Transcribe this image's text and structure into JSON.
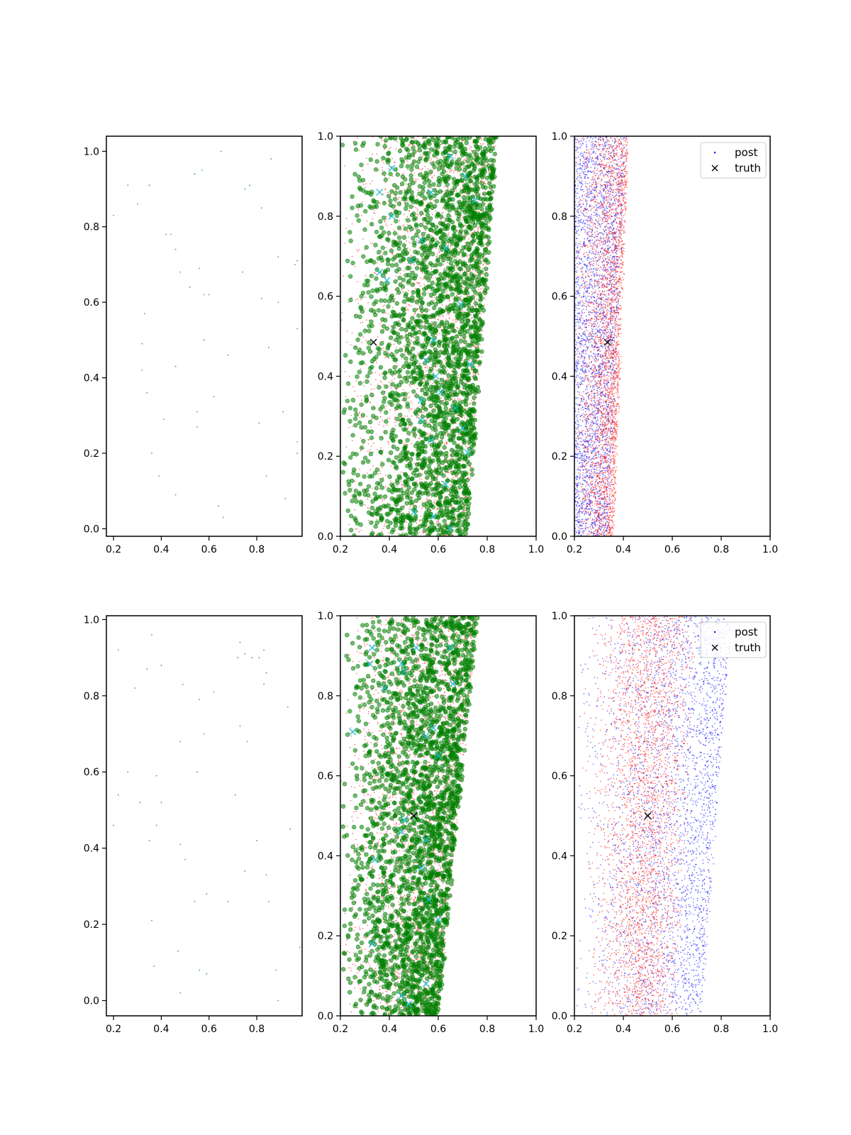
{
  "chart_data": [
    {
      "type": "scatter",
      "panel": "row1-col1",
      "xlim": [
        0.17,
        0.99
      ],
      "ylim": [
        -0.02,
        1.04
      ],
      "xticks": [
        "0.2",
        "0.4",
        "0.6",
        "0.8"
      ],
      "yticks": [
        "0.0",
        "0.2",
        "0.4",
        "0.6",
        "0.8",
        "1.0"
      ],
      "series": [
        {
          "color": "#2ca02c",
          "marker": "dot",
          "points": [
            [
              0.2,
              0.83
            ],
            [
              0.26,
              0.91
            ],
            [
              0.3,
              0.86
            ],
            [
              0.35,
              0.91
            ],
            [
              0.42,
              0.78
            ],
            [
              0.44,
              0.78
            ],
            [
              0.46,
              0.74
            ],
            [
              0.48,
              0.68
            ],
            [
              0.52,
              0.64
            ],
            [
              0.54,
              0.94
            ],
            [
              0.57,
              0.95
            ],
            [
              0.58,
              0.62
            ],
            [
              0.6,
              0.62
            ],
            [
              0.56,
              0.69
            ],
            [
              0.65,
              1.0
            ],
            [
              0.75,
              0.9
            ],
            [
              0.77,
              0.91
            ],
            [
              0.82,
              0.85
            ],
            [
              0.86,
              0.98
            ],
            [
              0.89,
              0.72
            ],
            [
              0.96,
              0.7
            ],
            [
              0.97,
              0.71
            ],
            [
              0.74,
              0.68
            ],
            [
              0.82,
              0.61
            ],
            [
              0.89,
              0.6
            ],
            [
              0.33,
              0.57
            ],
            [
              0.32,
              0.49
            ],
            [
              0.58,
              0.5
            ],
            [
              0.68,
              0.46
            ],
            [
              0.85,
              0.48
            ],
            [
              0.97,
              0.53
            ],
            [
              0.32,
              0.42
            ],
            [
              0.46,
              0.43
            ],
            [
              0.34,
              0.36
            ],
            [
              0.62,
              0.35
            ],
            [
              0.55,
              0.31
            ],
            [
              0.41,
              0.29
            ],
            [
              0.55,
              0.27
            ],
            [
              0.81,
              0.28
            ],
            [
              0.91,
              0.31
            ],
            [
              0.36,
              0.2
            ],
            [
              0.97,
              0.23
            ],
            [
              0.97,
              0.2
            ],
            [
              0.39,
              0.14
            ],
            [
              0.84,
              0.14
            ],
            [
              0.46,
              0.09
            ],
            [
              0.92,
              0.08
            ],
            [
              0.64,
              0.06
            ],
            [
              0.66,
              0.03
            ]
          ]
        }
      ]
    },
    {
      "type": "scatter",
      "panel": "row1-col2",
      "xlim": [
        0.2,
        1.0
      ],
      "ylim": [
        0.0,
        1.0
      ],
      "xticks": [
        "0.2",
        "0.4",
        "0.6",
        "0.8",
        "1.0"
      ],
      "yticks": [
        "0.0",
        "0.2",
        "0.4",
        "0.6",
        "0.8",
        "1.0"
      ],
      "series": [
        {
          "color": "#ff0000",
          "marker": "dot",
          "distribution": {
            "y_range": [
              0.0,
              1.0
            ],
            "x_left_at_y0": 0.2,
            "x_left_at_y1": 0.2,
            "x_right_at_y0": 0.72,
            "x_right_at_y1": 0.84,
            "density": "increasing-right"
          }
        },
        {
          "color": "#008000",
          "marker": "circle",
          "distribution": {
            "y_range": [
              0.0,
              1.0
            ],
            "x_left_at_y0": 0.2,
            "x_left_at_y1": 0.2,
            "x_right_at_y0": 0.72,
            "x_right_at_y1": 0.84,
            "density": "increasing-right"
          }
        },
        {
          "color": "#17becf",
          "marker": "x",
          "points": [
            [
              0.36,
              0.86
            ],
            [
              0.41,
              0.92
            ],
            [
              0.41,
              0.8
            ],
            [
              0.36,
              0.66
            ],
            [
              0.39,
              0.64
            ],
            [
              0.49,
              0.69
            ],
            [
              0.53,
              0.74
            ],
            [
              0.57,
              0.86
            ],
            [
              0.63,
              0.72
            ],
            [
              0.65,
              0.95
            ],
            [
              0.71,
              0.9
            ],
            [
              0.75,
              0.84
            ],
            [
              0.69,
              0.58
            ],
            [
              0.58,
              0.49
            ],
            [
              0.55,
              0.44
            ],
            [
              0.59,
              0.4
            ],
            [
              0.53,
              0.34
            ],
            [
              0.61,
              0.36
            ],
            [
              0.67,
              0.32
            ],
            [
              0.73,
              0.43
            ],
            [
              0.53,
              0.29
            ],
            [
              0.57,
              0.24
            ],
            [
              0.63,
              0.13
            ],
            [
              0.5,
              0.06
            ],
            [
              0.58,
              0.05
            ],
            [
              0.65,
              0.02
            ],
            [
              0.7,
              0.27
            ],
            [
              0.72,
              0.21
            ]
          ]
        }
      ],
      "truth": [
        0.335,
        0.485
      ]
    },
    {
      "type": "scatter",
      "panel": "row1-col3",
      "xlim": [
        0.2,
        1.0
      ],
      "ylim": [
        0.0,
        1.0
      ],
      "xticks": [
        "0.2",
        "0.4",
        "0.6",
        "0.8",
        "1.0"
      ],
      "yticks": [
        "0.0",
        "0.2",
        "0.4",
        "0.6",
        "0.8",
        "1.0"
      ],
      "legend": {
        "location": "top-right",
        "entries": [
          "post",
          "truth"
        ]
      },
      "series": [
        {
          "name": "post",
          "color": "#0000ff",
          "marker": "dot",
          "distribution": {
            "y_range": [
              0.0,
              1.0
            ],
            "x_left_at_y0": 0.2,
            "x_left_at_y1": 0.2,
            "x_right_at_y0": 0.34,
            "x_right_at_y1": 0.41
          }
        },
        {
          "color": "#ff0000",
          "marker": "dot",
          "distribution": {
            "y_range": [
              0.0,
              1.0
            ],
            "x_left_at_y0": 0.2,
            "x_left_at_y1": 0.2,
            "x_right_at_y0": 0.36,
            "x_right_at_y1": 0.42,
            "density": "increasing-right"
          }
        }
      ],
      "truth": [
        0.335,
        0.485
      ]
    },
    {
      "type": "scatter",
      "panel": "row2-col1",
      "xlim": [
        0.17,
        0.99
      ],
      "ylim": [
        -0.04,
        1.01
      ],
      "xticks": [
        "0.2",
        "0.4",
        "0.6",
        "0.8"
      ],
      "yticks": [
        "0.0",
        "0.2",
        "0.4",
        "0.6",
        "0.8",
        "1.0"
      ],
      "series": [
        {
          "color": "#2ca02c",
          "marker": "dot",
          "points": [
            [
              0.22,
              0.92
            ],
            [
              0.36,
              0.96
            ],
            [
              0.34,
              0.87
            ],
            [
              0.4,
              0.88
            ],
            [
              0.29,
              0.82
            ],
            [
              0.49,
              0.83
            ],
            [
              0.56,
              0.79
            ],
            [
              0.62,
              0.81
            ],
            [
              0.73,
              0.94
            ],
            [
              0.75,
              0.91
            ],
            [
              0.72,
              0.9
            ],
            [
              0.78,
              0.9
            ],
            [
              0.81,
              0.9
            ],
            [
              0.83,
              0.92
            ],
            [
              0.83,
              0.83
            ],
            [
              0.84,
              0.86
            ],
            [
              0.93,
              0.77
            ],
            [
              0.73,
              0.72
            ],
            [
              0.76,
              0.68
            ],
            [
              0.58,
              0.7
            ],
            [
              0.48,
              0.68
            ],
            [
              0.26,
              0.6
            ],
            [
              0.38,
              0.59
            ],
            [
              0.55,
              0.6
            ],
            [
              0.22,
              0.54
            ],
            [
              0.31,
              0.52
            ],
            [
              0.4,
              0.52
            ],
            [
              0.71,
              0.54
            ],
            [
              0.2,
              0.46
            ],
            [
              0.38,
              0.46
            ],
            [
              0.35,
              0.42
            ],
            [
              0.48,
              0.41
            ],
            [
              0.5,
              0.37
            ],
            [
              0.8,
              0.42
            ],
            [
              0.94,
              0.45
            ],
            [
              0.75,
              0.34
            ],
            [
              0.84,
              0.33
            ],
            [
              0.54,
              0.26
            ],
            [
              0.59,
              0.28
            ],
            [
              0.68,
              0.26
            ],
            [
              0.85,
              0.26
            ],
            [
              0.36,
              0.21
            ],
            [
              0.98,
              0.14
            ],
            [
              0.47,
              0.13
            ],
            [
              0.37,
              0.09
            ],
            [
              0.56,
              0.08
            ],
            [
              0.59,
              0.07
            ],
            [
              0.88,
              0.08
            ],
            [
              0.48,
              0.02
            ],
            [
              0.89,
              0.0
            ]
          ]
        }
      ]
    },
    {
      "type": "scatter",
      "panel": "row2-col2",
      "xlim": [
        0.2,
        1.0
      ],
      "ylim": [
        0.0,
        1.0
      ],
      "xticks": [
        "0.2",
        "0.4",
        "0.6",
        "0.8",
        "1.0"
      ],
      "yticks": [
        "0.0",
        "0.2",
        "0.4",
        "0.6",
        "0.8",
        "1.0"
      ],
      "series": [
        {
          "color": "#ff0000",
          "marker": "dot",
          "distribution": {
            "y_range": [
              0.0,
              1.0
            ],
            "x_left_at_y0": 0.2,
            "x_left_at_y1": 0.2,
            "x_right_at_y0": 0.6,
            "x_right_at_y1": 0.76,
            "density": "increasing-right"
          }
        },
        {
          "color": "#008000",
          "marker": "circle",
          "distribution": {
            "y_range": [
              0.0,
              1.0
            ],
            "x_left_at_y0": 0.2,
            "x_left_at_y1": 0.2,
            "x_right_at_y0": 0.6,
            "x_right_at_y1": 0.76,
            "density": "increasing-right"
          }
        },
        {
          "color": "#17becf",
          "marker": "x",
          "points": [
            [
              0.25,
              0.71
            ],
            [
              0.32,
              0.88
            ],
            [
              0.33,
              0.92
            ],
            [
              0.38,
              0.82
            ],
            [
              0.45,
              0.88
            ],
            [
              0.46,
              0.86
            ],
            [
              0.51,
              0.92
            ],
            [
              0.55,
              0.7
            ],
            [
              0.58,
              0.72
            ],
            [
              0.6,
              0.65
            ],
            [
              0.65,
              0.92
            ],
            [
              0.66,
              0.83
            ],
            [
              0.46,
              0.49
            ],
            [
              0.45,
              0.46
            ],
            [
              0.55,
              0.44
            ],
            [
              0.34,
              0.39
            ],
            [
              0.53,
              0.37
            ],
            [
              0.56,
              0.29
            ],
            [
              0.33,
              0.18
            ],
            [
              0.6,
              0.24
            ],
            [
              0.55,
              0.08
            ],
            [
              0.45,
              0.05
            ],
            [
              0.48,
              0.03
            ]
          ]
        }
      ],
      "truth": [
        0.5,
        0.5
      ]
    },
    {
      "type": "scatter",
      "panel": "row2-col3",
      "xlim": [
        0.2,
        1.0
      ],
      "ylim": [
        0.0,
        1.0
      ],
      "xticks": [
        "0.2",
        "0.4",
        "0.6",
        "0.8",
        "1.0"
      ],
      "yticks": [
        "0.0",
        "0.2",
        "0.4",
        "0.6",
        "0.8",
        "1.0"
      ],
      "legend": {
        "location": "top-right",
        "entries": [
          "post",
          "truth"
        ]
      },
      "series": [
        {
          "name": "post",
          "color": "#0000ff",
          "marker": "dot",
          "distribution": {
            "y_range": [
              0.0,
              1.0
            ],
            "x_left_at_y0": 0.2,
            "x_left_at_y1": 0.2,
            "x_right_at_y0": 0.72,
            "x_right_at_y1": 0.84,
            "density": "increasing-right"
          }
        },
        {
          "color": "#ff0000",
          "marker": "dot",
          "distribution": {
            "y_range": [
              0.0,
              1.0
            ],
            "x_left_at_y0": 0.2,
            "x_left_at_y1": 0.2,
            "x_right_at_y0": 0.62,
            "x_right_at_y1": 0.72,
            "density": "peak-near-right"
          }
        }
      ],
      "truth": [
        0.5,
        0.5
      ]
    }
  ]
}
